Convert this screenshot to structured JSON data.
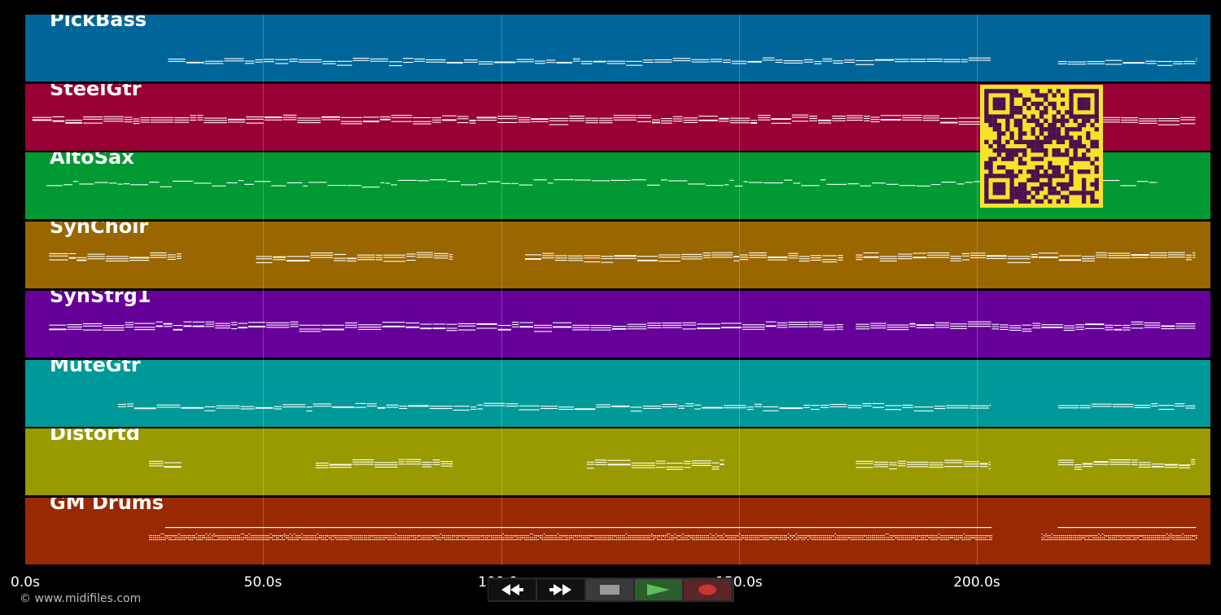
{
  "colors": {
    "background": "#000000",
    "note": "#ffffff",
    "qr_bg": "#f5e32a",
    "qr_fg": "#4b1050"
  },
  "timeline": {
    "duration_seconds": 249,
    "ticks": [
      {
        "value": 0,
        "label": "0.0s"
      },
      {
        "value": 50,
        "label": "50.0s"
      },
      {
        "value": 100,
        "label": "100.0s"
      },
      {
        "value": 150,
        "label": "150.0s"
      },
      {
        "value": 200,
        "label": "200.0s"
      }
    ]
  },
  "tracks": [
    {
      "name": "PickBass",
      "color": "#006699",
      "segments": [
        [
          30,
          203
        ],
        [
          217,
          246
        ]
      ],
      "style": "bass"
    },
    {
      "name": "SteelGtr",
      "color": "#990033",
      "segments": [
        [
          1.5,
          246
        ]
      ],
      "style": "chord"
    },
    {
      "name": "AltoSax",
      "color": "#009933",
      "segments": [
        [
          4.5,
          238
        ]
      ],
      "style": "melody"
    },
    {
      "name": "SynChoir",
      "color": "#996600",
      "segments": [
        [
          5,
          33
        ],
        [
          48.5,
          90
        ],
        [
          105,
          172
        ],
        [
          174.5,
          246
        ]
      ],
      "style": "chord"
    },
    {
      "name": "SynStrg1",
      "color": "#660099",
      "segments": [
        [
          5,
          172
        ],
        [
          174.5,
          246
        ]
      ],
      "style": "chord"
    },
    {
      "name": "MuteGtr",
      "color": "#009999",
      "segments": [
        [
          19.5,
          203
        ],
        [
          217,
          246
        ]
      ],
      "style": "bass"
    },
    {
      "name": "Distortd",
      "color": "#999900",
      "segments": [
        [
          26,
          33
        ],
        [
          61,
          90
        ],
        [
          118,
          147
        ],
        [
          174.5,
          203
        ],
        [
          217,
          246
        ]
      ],
      "style": "chord"
    },
    {
      "name": "GM Drums",
      "color": "#992900",
      "segments": [
        [
          26,
          203
        ],
        [
          213.5,
          246
        ]
      ],
      "style": "drums"
    }
  ],
  "footer": {
    "copyright": "© www.midifiles.com"
  },
  "controls": [
    {
      "name": "rewind-button",
      "icon": "rewind-icon"
    },
    {
      "name": "fast-forward-button",
      "icon": "fast-forward-icon"
    },
    {
      "name": "stop-button",
      "icon": "stop-icon"
    },
    {
      "name": "play-button",
      "icon": "play-icon"
    },
    {
      "name": "record-button",
      "icon": "record-icon"
    }
  ]
}
